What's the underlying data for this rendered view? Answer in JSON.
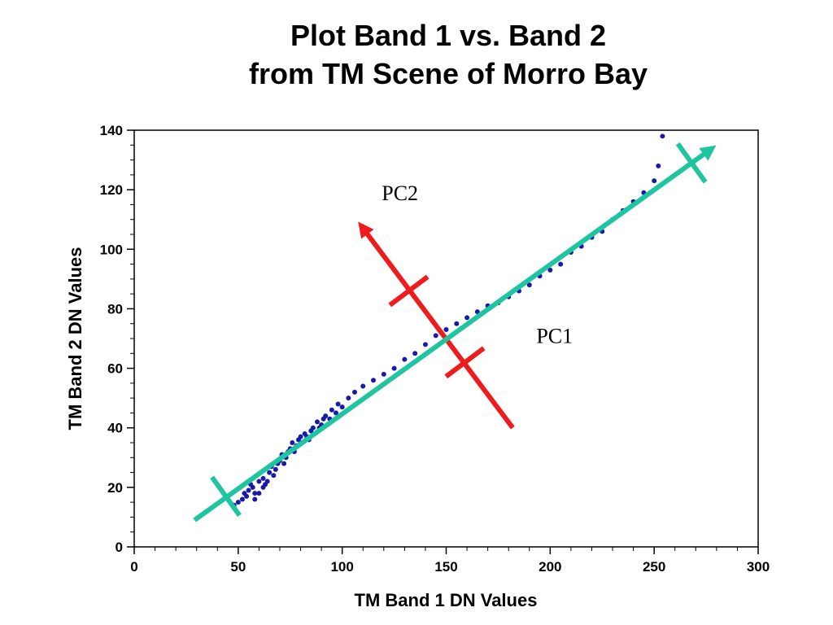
{
  "chart_data": {
    "type": "scatter",
    "title": [
      "Plot Band 1 vs. Band 2",
      "from TM Scene of Morro Bay"
    ],
    "xlabel": "TM Band 1 DN Values",
    "ylabel": "TM Band 2 DN Values",
    "xlim": [
      0,
      300
    ],
    "ylim": [
      0,
      140
    ],
    "x_ticks": [
      0,
      50,
      100,
      150,
      200,
      250,
      300
    ],
    "y_ticks": [
      0,
      20,
      40,
      60,
      80,
      100,
      120,
      140
    ],
    "grid": false,
    "legend": null,
    "colors": {
      "points": "#1a1aa8",
      "pc1": "#1fc4a0",
      "pc2": "#ee1c1c"
    },
    "series": [
      {
        "values": [
          [
            48,
            14
          ],
          [
            50,
            15
          ],
          [
            52,
            16
          ],
          [
            54,
            17
          ],
          [
            55,
            19
          ],
          [
            57,
            20
          ],
          [
            58,
            18
          ],
          [
            60,
            22
          ],
          [
            62,
            23
          ],
          [
            63,
            21
          ],
          [
            65,
            25
          ],
          [
            66,
            27
          ],
          [
            68,
            26
          ],
          [
            70,
            29
          ],
          [
            71,
            31
          ],
          [
            73,
            30
          ],
          [
            75,
            33
          ],
          [
            76,
            35
          ],
          [
            78,
            34
          ],
          [
            80,
            37
          ],
          [
            82,
            38
          ],
          [
            84,
            36
          ],
          [
            86,
            40
          ],
          [
            88,
            42
          ],
          [
            90,
            41
          ],
          [
            92,
            44
          ],
          [
            95,
            46
          ],
          [
            98,
            48
          ],
          [
            100,
            47
          ],
          [
            103,
            50
          ],
          [
            106,
            52
          ],
          [
            110,
            54
          ],
          [
            115,
            56
          ],
          [
            120,
            58
          ],
          [
            125,
            60
          ],
          [
            130,
            63
          ],
          [
            135,
            65
          ],
          [
            140,
            68
          ],
          [
            145,
            71
          ],
          [
            150,
            73
          ],
          [
            155,
            75
          ],
          [
            160,
            77
          ],
          [
            165,
            79
          ],
          [
            170,
            81
          ],
          [
            175,
            82
          ],
          [
            180,
            84
          ],
          [
            185,
            86
          ],
          [
            190,
            88
          ],
          [
            195,
            91
          ],
          [
            200,
            93
          ],
          [
            205,
            95
          ],
          [
            210,
            99
          ],
          [
            215,
            101
          ],
          [
            220,
            104
          ],
          [
            225,
            106
          ],
          [
            230,
            110
          ],
          [
            235,
            113
          ],
          [
            240,
            116
          ],
          [
            245,
            119
          ],
          [
            250,
            123
          ],
          [
            252,
            128
          ],
          [
            254,
            138
          ],
          [
            60,
            18
          ],
          [
            64,
            22
          ],
          [
            69,
            28
          ],
          [
            74,
            32
          ],
          [
            79,
            36
          ],
          [
            85,
            39
          ],
          [
            91,
            43
          ],
          [
            97,
            45
          ],
          [
            58,
            16
          ],
          [
            62,
            20
          ],
          [
            67,
            24
          ],
          [
            72,
            28
          ],
          [
            77,
            32
          ],
          [
            83,
            37
          ],
          [
            89,
            40
          ],
          [
            94,
            43
          ],
          [
            53,
            18
          ],
          [
            56,
            21
          ]
        ]
      }
    ],
    "annotations": [
      {
        "text": "PC1",
        "x": 200,
        "y": 71
      },
      {
        "text": "PC2",
        "x": 128,
        "y": 119
      }
    ],
    "pc1_axis": {
      "start": [
        29,
        9
      ],
      "end": [
        278,
        134
      ],
      "ticks": [
        [
          44,
          17
        ],
        [
          268,
          129
        ]
      ]
    },
    "pc2_axis": {
      "start": [
        182,
        40
      ],
      "end": [
        109,
        108
      ],
      "ticks": [
        [
          132,
          86
        ],
        [
          159,
          62
        ]
      ]
    }
  }
}
